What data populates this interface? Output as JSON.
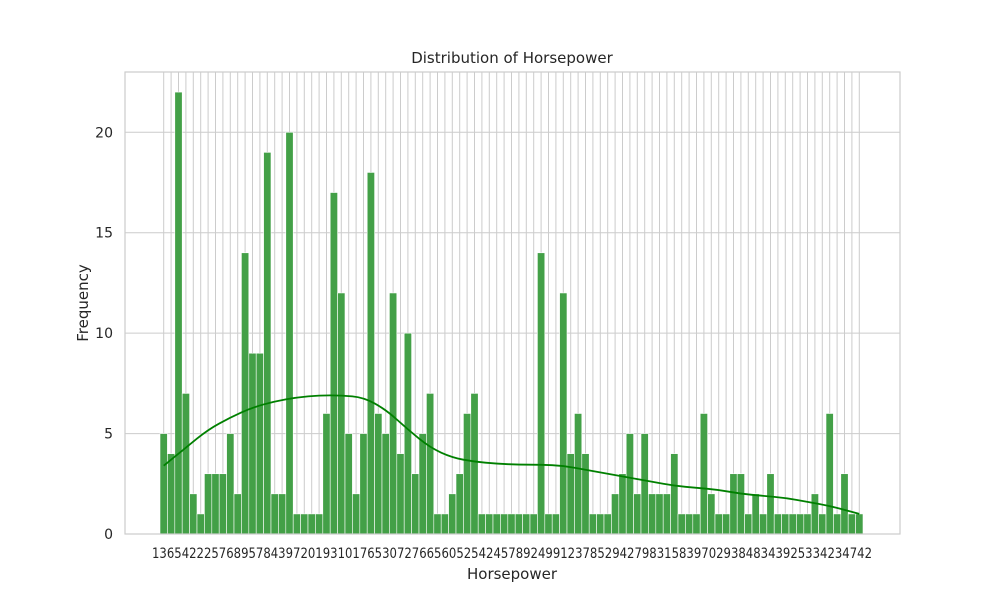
{
  "chart_data": {
    "type": "bar",
    "title": "Distribution of Horsepower",
    "xlabel": "Horsepower",
    "ylabel": "Frequency",
    "ylim": [
      0,
      23
    ],
    "yticks": [
      0,
      5,
      10,
      15,
      20
    ],
    "grid": true,
    "bar_color": "#43a047",
    "kde_color": "#008000",
    "frequencies": [
      5,
      4,
      22,
      7,
      2,
      1,
      3,
      3,
      3,
      5,
      2,
      14,
      9,
      9,
      19,
      2,
      2,
      20,
      1,
      1,
      1,
      1,
      6,
      17,
      12,
      5,
      2,
      5,
      18,
      6,
      5,
      12,
      4,
      10,
      3,
      5,
      7,
      1,
      1,
      2,
      3,
      6,
      7,
      1,
      1,
      1,
      1,
      1,
      1,
      1,
      1,
      14,
      1,
      1,
      12,
      4,
      6,
      4,
      1,
      1,
      1,
      2,
      3,
      5,
      2,
      5,
      2,
      2,
      2,
      4,
      1,
      1,
      1,
      6,
      2,
      1,
      1,
      3,
      3,
      1,
      2,
      1,
      3,
      1,
      1,
      1,
      1,
      1,
      2,
      1,
      6,
      1,
      3,
      1,
      1
    ],
    "kde_curve": [
      [
        0,
        3.4
      ],
      [
        3,
        4.3
      ],
      [
        6,
        5.2
      ],
      [
        9,
        5.8
      ],
      [
        12,
        6.3
      ],
      [
        15,
        6.6
      ],
      [
        18,
        6.8
      ],
      [
        21,
        6.9
      ],
      [
        24,
        6.9
      ],
      [
        27,
        6.8
      ],
      [
        30,
        6.2
      ],
      [
        33,
        5.2
      ],
      [
        36,
        4.3
      ],
      [
        39,
        3.8
      ],
      [
        42,
        3.6
      ],
      [
        45,
        3.5
      ],
      [
        48,
        3.45
      ],
      [
        51,
        3.45
      ],
      [
        54,
        3.4
      ],
      [
        57,
        3.2
      ],
      [
        60,
        3.0
      ],
      [
        63,
        2.8
      ],
      [
        66,
        2.6
      ],
      [
        69,
        2.4
      ],
      [
        72,
        2.3
      ],
      [
        75,
        2.2
      ],
      [
        78,
        2.0
      ],
      [
        81,
        1.9
      ],
      [
        84,
        1.8
      ],
      [
        87,
        1.6
      ],
      [
        90,
        1.4
      ],
      [
        93,
        1.1
      ],
      [
        94,
        1.0
      ]
    ],
    "x_tick_text": "1365422257689578439720193101765307276656052542457892499123785294279831583970293848343925334234742"
  }
}
